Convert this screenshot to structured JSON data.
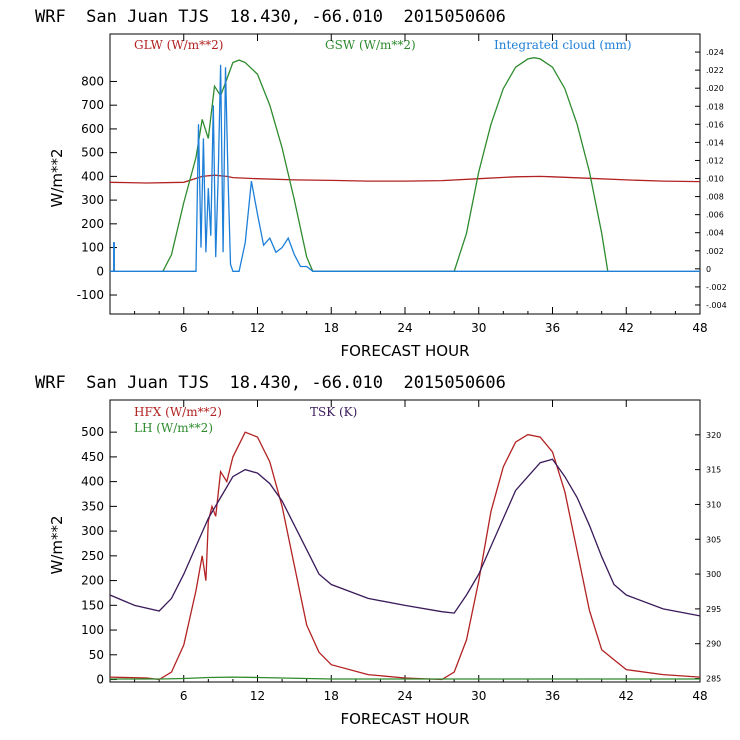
{
  "colors": {
    "glw": "#b22222",
    "gsw": "#2e8b2e",
    "cloud": "#1e7fd8",
    "hfx": "#b22222",
    "lh": "#2e8b2e",
    "tsk": "#3a1a5a"
  },
  "chart_data": [
    {
      "type": "line",
      "title": "WRF  San Juan TJS  18.430, -66.010  2015050606",
      "xlabel": "FORECAST HOUR",
      "ylabel": "W/m**2",
      "xlim": [
        0,
        48
      ],
      "ylim": [
        -180,
        1000
      ],
      "x_ticks": [
        "6",
        "12",
        "18",
        "24",
        "30",
        "36",
        "42",
        "48"
      ],
      "y_ticks": [
        "-100",
        "0",
        "100",
        "200",
        "300",
        "400",
        "500",
        "600",
        "700",
        "800"
      ],
      "y2_ticks": [
        "-.004",
        "-.002",
        "0",
        ".002",
        ".004",
        ".006",
        ".008",
        ".010",
        ".012",
        ".014",
        ".016",
        ".018",
        ".020",
        ".022",
        ".024"
      ],
      "series": [
        {
          "name": "GLW (W/m**2)",
          "x": [
            0,
            3,
            6,
            7.5,
            8.5,
            9.5,
            10,
            12,
            15,
            18,
            21,
            24,
            27,
            30,
            33,
            35,
            36,
            39,
            42,
            45,
            48
          ],
          "values": [
            375,
            372,
            375,
            400,
            405,
            400,
            395,
            390,
            385,
            383,
            380,
            380,
            382,
            390,
            398,
            400,
            398,
            392,
            385,
            380,
            378
          ]
        },
        {
          "name": "GSW (W/m**2)",
          "x": [
            4.3,
            5,
            6,
            7,
            7.5,
            8,
            8.5,
            9,
            9.5,
            10,
            10.5,
            11,
            12,
            13,
            14,
            15,
            16,
            16.5,
            28,
            29,
            30,
            31,
            32,
            33,
            34,
            34.5,
            35,
            36,
            37,
            38,
            39,
            40,
            40.5
          ],
          "values": [
            0,
            70,
            290,
            480,
            640,
            560,
            780,
            740,
            810,
            880,
            890,
            880,
            830,
            700,
            520,
            300,
            60,
            0,
            0,
            160,
            420,
            620,
            770,
            860,
            895,
            900,
            895,
            860,
            770,
            620,
            420,
            160,
            0
          ]
        },
        {
          "name": "Integrated cloud (mm)",
          "x": [
            0,
            0.3,
            0.3,
            0.35,
            0.35,
            7,
            7.2,
            7.4,
            7.6,
            7.8,
            8,
            8.2,
            8.4,
            8.6,
            8.8,
            9,
            9.2,
            9.4,
            9.6,
            9.8,
            10,
            10.5,
            11,
            11.5,
            12,
            12.5,
            13,
            13.5,
            14,
            14.5,
            15,
            15.5,
            16,
            16.5,
            48
          ],
          "values": [
            0,
            0,
            120,
            120,
            0,
            0,
            620,
            100,
            560,
            80,
            350,
            150,
            700,
            60,
            400,
            870,
            80,
            860,
            400,
            30,
            0,
            0,
            120,
            380,
            240,
            110,
            140,
            80,
            100,
            140,
            70,
            20,
            20,
            0,
            0
          ]
        }
      ],
      "legend": "top",
      "y2_range": [
        -0.005,
        0.026
      ]
    },
    {
      "type": "line",
      "title": "WRF  San Juan TJS  18.430, -66.010  2015050606",
      "xlabel": "FORECAST HOUR",
      "ylabel": "W/m**2",
      "xlim": [
        0,
        48
      ],
      "ylim": [
        -5,
        565
      ],
      "x_ticks": [
        "6",
        "12",
        "18",
        "24",
        "30",
        "36",
        "42",
        "48"
      ],
      "y_ticks": [
        "0",
        "50",
        "100",
        "150",
        "200",
        "250",
        "300",
        "350",
        "400",
        "450",
        "500"
      ],
      "y2_ticks": [
        "285",
        "290",
        "295",
        "300",
        "305",
        "310",
        "315",
        "320"
      ],
      "y2_range": [
        284.5,
        325
      ],
      "series": [
        {
          "name": "HFX (W/m**2)",
          "x": [
            0,
            3,
            4,
            5,
            6,
            7,
            7.5,
            7.8,
            8,
            8.3,
            8.6,
            9,
            9.5,
            10,
            11,
            12,
            13,
            14,
            15,
            16,
            17,
            18,
            21,
            24,
            27,
            28,
            29,
            30,
            31,
            32,
            33,
            34,
            35,
            36,
            37,
            38,
            39,
            40,
            41,
            42,
            45,
            48
          ],
          "values": [
            5,
            3,
            0,
            15,
            70,
            180,
            250,
            200,
            320,
            350,
            330,
            420,
            400,
            450,
            500,
            490,
            440,
            350,
            230,
            110,
            55,
            30,
            10,
            3,
            0,
            15,
            80,
            200,
            340,
            430,
            480,
            495,
            490,
            460,
            380,
            260,
            140,
            60,
            40,
            20,
            10,
            5
          ]
        },
        {
          "name": "LH (W/m**2)",
          "x": [
            0,
            4,
            6,
            8,
            10,
            12,
            14,
            16,
            18,
            24,
            30,
            36,
            42,
            48
          ],
          "values": [
            1,
            1,
            2,
            4,
            5,
            4,
            3,
            2,
            1,
            1,
            1,
            1,
            1,
            1
          ]
        },
        {
          "name": "TSK (K)",
          "x": [
            0,
            2,
            4,
            5,
            6,
            7,
            8,
            8.5,
            9,
            9.5,
            10,
            11,
            12,
            13,
            14,
            15,
            16,
            17,
            18,
            21,
            24,
            27,
            28,
            29,
            30,
            31,
            32,
            33,
            34,
            35,
            36,
            37,
            38,
            39,
            40,
            41,
            42,
            45,
            48
          ],
          "values": [
            297,
            295.5,
            294.7,
            296.5,
            300,
            304,
            308,
            309.5,
            311,
            312.5,
            314,
            315,
            314.5,
            313,
            310.5,
            307,
            303.5,
            300,
            298.5,
            296.5,
            295.5,
            294.6,
            294.4,
            297,
            300,
            304,
            308,
            312,
            314,
            316,
            316.5,
            314,
            311,
            307,
            302.5,
            298.5,
            297,
            295,
            294
          ]
        }
      ],
      "legend": "top-left"
    }
  ]
}
